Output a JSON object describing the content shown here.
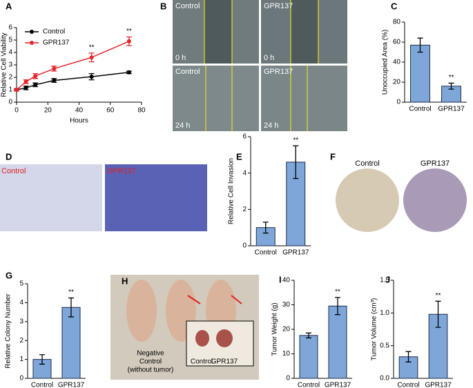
{
  "chart_data": [
    {
      "type": "line",
      "xlabel": "Hours",
      "ylabel": "Relative Cell Viability",
      "x": [
        0,
        6,
        12,
        24,
        48,
        72
      ],
      "xlim": [
        0,
        80
      ],
      "xticks": [
        0,
        20,
        40,
        60,
        80
      ],
      "ylim": [
        0,
        6
      ],
      "yticks": [
        0,
        1,
        2,
        3,
        4,
        5,
        6
      ],
      "legend": "upper left",
      "series": [
        {
          "name": "Control",
          "color": "#000000",
          "values": [
            1.0,
            1.15,
            1.4,
            1.75,
            2.05,
            2.4
          ],
          "errors": [
            0.1,
            0.15,
            0.15,
            0.15,
            0.25,
            0.1
          ]
        },
        {
          "name": "GPR137",
          "color": "#e8232a",
          "values": [
            1.0,
            1.65,
            2.1,
            2.7,
            3.6,
            4.9
          ],
          "errors": [
            0.1,
            0.15,
            0.2,
            0.2,
            0.35,
            0.35
          ]
        }
      ],
      "annotations": [
        {
          "x": 48,
          "text": "**"
        },
        {
          "x": 72,
          "text": "**"
        }
      ]
    },
    {
      "type": "bar",
      "ylabel": "Unoccupied Area (%)",
      "categories": [
        "Control",
        "GPR137"
      ],
      "values": [
        57,
        16
      ],
      "errors": [
        7,
        3
      ],
      "color": "#7ea6d8",
      "ylim": [
        0,
        80
      ],
      "yticks": [
        0,
        20,
        40,
        60,
        80
      ],
      "annotations": [
        {
          "x": "GPR137",
          "text": "**"
        }
      ]
    },
    {
      "type": "bar",
      "ylabel": "Relative Cell Invasion",
      "categories": [
        "Control",
        "GPR137"
      ],
      "values": [
        1.0,
        4.6
      ],
      "errors": [
        0.3,
        0.9
      ],
      "color": "#7ea6d8",
      "ylim": [
        0,
        6
      ],
      "yticks": [
        0,
        2,
        4,
        6
      ],
      "annotations": [
        {
          "x": "GPR137",
          "text": "**"
        }
      ]
    },
    {
      "type": "bar",
      "ylabel": "Relative Colony Number",
      "categories": [
        "Control",
        "GPR137"
      ],
      "values": [
        1.0,
        3.75
      ],
      "errors": [
        0.25,
        0.5
      ],
      "color": "#7ea6d8",
      "ylim": [
        0,
        5
      ],
      "yticks": [
        0,
        1,
        2,
        3,
        4,
        5
      ],
      "annotations": [
        {
          "x": "GPR137",
          "text": "**"
        }
      ]
    },
    {
      "type": "bar",
      "ylabel": "Tumor Weight (g)",
      "categories": [
        "Control",
        "GPR137"
      ],
      "values": [
        17.5,
        29.5
      ],
      "errors": [
        1,
        3.5
      ],
      "color": "#7ea6d8",
      "ylim": [
        0,
        40
      ],
      "yticks": [
        0,
        10,
        20,
        30,
        40
      ],
      "annotations": [
        {
          "x": "GPR137",
          "text": "**"
        }
      ]
    },
    {
      "type": "bar",
      "ylabel": "Tumor Volume (cm³)",
      "categories": [
        "Control",
        "GPR137"
      ],
      "values": [
        0.33,
        0.98
      ],
      "errors": [
        0.08,
        0.2
      ],
      "color": "#7ea6d8",
      "ylim": [
        0,
        1.5
      ],
      "yticks": [
        {
          "value": 0,
          "label": "0.0"
        },
        {
          "value": 0.5,
          "label": "0.5"
        },
        {
          "value": 1,
          "label": "1.0"
        },
        {
          "value": 1.5,
          "label": "1.5"
        }
      ],
      "annotations": [
        {
          "x": "GPR137",
          "text": "**"
        }
      ]
    }
  ],
  "panels": [
    "A",
    "B",
    "C",
    "D",
    "E",
    "F",
    "G",
    "H",
    "I",
    "J"
  ],
  "images": {
    "B": {
      "columns": [
        "Control",
        "GPR137"
      ],
      "rows": [
        "0 h",
        "24 h"
      ]
    },
    "D": {
      "labels": [
        "Control",
        "GPR137"
      ]
    },
    "F": {
      "labels": [
        "Control",
        "GPR137"
      ]
    },
    "H": {
      "labels": [
        "Negative",
        "Control",
        "(without tumor)",
        "Control",
        "GPR137"
      ]
    }
  }
}
